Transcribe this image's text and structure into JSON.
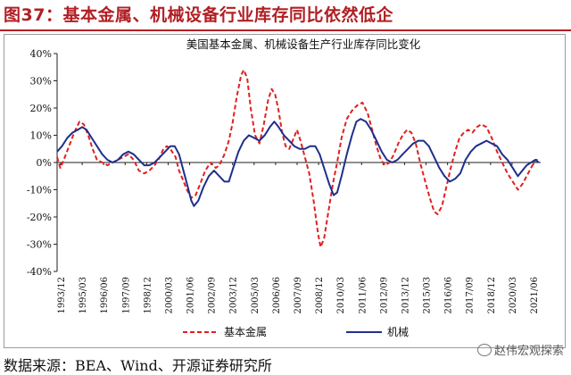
{
  "header": {
    "figure_title": "图37：基本金属、机械设备行业库存同比依然低企"
  },
  "source_note": "数据来源：BEA、Wind、开源证券研究所",
  "watermark": "赵伟宏观探索",
  "chart_data": {
    "type": "line",
    "title": "美国基本金属、机械设备生产行业库存同比变化",
    "xlabel": "",
    "ylabel": "",
    "ylim": [
      -40,
      40
    ],
    "yticks": [
      "40%",
      "30%",
      "20%",
      "10%",
      "0%",
      "-10%",
      "-20%",
      "-30%",
      "-40%"
    ],
    "xtick_labels": [
      "1993/12",
      "1995/03",
      "1996/06",
      "1997/09",
      "1998/12",
      "2000/03",
      "2001/06",
      "2002/09",
      "2003/12",
      "2005/03",
      "2006/06",
      "2007/09",
      "2008/12",
      "2010/03",
      "2011/06",
      "2012/09",
      "2013/12",
      "2015/03",
      "2016/06",
      "2017/09",
      "2018/12",
      "2020/03",
      "2021/06"
    ],
    "xlim": [
      1993.917,
      2021.6
    ],
    "grid": false,
    "legend_position": "bottom",
    "series": [
      {
        "name": "基本金属",
        "color": "#e02020",
        "dash": "dashed",
        "points": [
          [
            1993.917,
            2
          ],
          [
            1994.1,
            -2
          ],
          [
            1994.3,
            1
          ],
          [
            1994.6,
            6
          ],
          [
            1994.9,
            11
          ],
          [
            1995.2,
            15
          ],
          [
            1995.45,
            14
          ],
          [
            1995.7,
            10
          ],
          [
            1995.95,
            5
          ],
          [
            1996.2,
            1
          ],
          [
            1996.5,
            0
          ],
          [
            1996.8,
            -1
          ],
          [
            1997.1,
            0
          ],
          [
            1997.4,
            1
          ],
          [
            1997.7,
            2
          ],
          [
            1998.0,
            3
          ],
          [
            1998.3,
            1
          ],
          [
            1998.6,
            -3
          ],
          [
            1998.9,
            -4
          ],
          [
            1999.2,
            -3
          ],
          [
            1999.5,
            -1
          ],
          [
            1999.8,
            2
          ],
          [
            2000.0,
            5
          ],
          [
            2000.2,
            6
          ],
          [
            2000.4,
            5
          ],
          [
            2000.7,
            2
          ],
          [
            2000.9,
            -3
          ],
          [
            2001.1,
            -6
          ],
          [
            2001.35,
            -10
          ],
          [
            2001.6,
            -13
          ],
          [
            2001.85,
            -12
          ],
          [
            2002.1,
            -8
          ],
          [
            2002.4,
            -3
          ],
          [
            2002.7,
            0
          ],
          [
            2003.0,
            -2
          ],
          [
            2003.2,
            -1
          ],
          [
            2003.5,
            3
          ],
          [
            2003.75,
            8
          ],
          [
            2003.95,
            14
          ],
          [
            2004.2,
            24
          ],
          [
            2004.45,
            32
          ],
          [
            2004.6,
            34
          ],
          [
            2004.8,
            31
          ],
          [
            2005.0,
            20
          ],
          [
            2005.25,
            10
          ],
          [
            2005.5,
            7
          ],
          [
            2005.75,
            14
          ],
          [
            2006.0,
            23
          ],
          [
            2006.2,
            27
          ],
          [
            2006.4,
            25
          ],
          [
            2006.6,
            19
          ],
          [
            2006.8,
            11
          ],
          [
            2007.0,
            6
          ],
          [
            2007.2,
            5
          ],
          [
            2007.4,
            8
          ],
          [
            2007.65,
            12
          ],
          [
            2007.85,
            8
          ],
          [
            2008.1,
            2
          ],
          [
            2008.35,
            -4
          ],
          [
            2008.6,
            -14
          ],
          [
            2008.85,
            -26
          ],
          [
            2009.0,
            -31
          ],
          [
            2009.2,
            -28
          ],
          [
            2009.45,
            -18
          ],
          [
            2009.7,
            -8
          ],
          [
            2009.95,
            0
          ],
          [
            2010.2,
            9
          ],
          [
            2010.5,
            16
          ],
          [
            2010.8,
            19
          ],
          [
            2011.1,
            21
          ],
          [
            2011.4,
            22
          ],
          [
            2011.7,
            18
          ],
          [
            2011.95,
            12
          ],
          [
            2012.2,
            6
          ],
          [
            2012.45,
            1
          ],
          [
            2012.7,
            -1
          ],
          [
            2012.95,
            0
          ],
          [
            2013.2,
            3
          ],
          [
            2013.45,
            7
          ],
          [
            2013.7,
            10
          ],
          [
            2013.95,
            12
          ],
          [
            2014.2,
            11
          ],
          [
            2014.45,
            7
          ],
          [
            2014.7,
            0
          ],
          [
            2014.95,
            -6
          ],
          [
            2015.25,
            -13
          ],
          [
            2015.5,
            -18
          ],
          [
            2015.7,
            -19
          ],
          [
            2015.95,
            -16
          ],
          [
            2016.2,
            -9
          ],
          [
            2016.45,
            -2
          ],
          [
            2016.7,
            4
          ],
          [
            2016.95,
            9
          ],
          [
            2017.2,
            11
          ],
          [
            2017.45,
            12
          ],
          [
            2017.7,
            11
          ],
          [
            2017.95,
            13
          ],
          [
            2018.2,
            14
          ],
          [
            2018.5,
            13
          ],
          [
            2018.8,
            9
          ],
          [
            2019.1,
            4
          ],
          [
            2019.4,
            0
          ],
          [
            2019.7,
            -4
          ],
          [
            2020.0,
            -7
          ],
          [
            2020.3,
            -10
          ],
          [
            2020.55,
            -8
          ],
          [
            2020.8,
            -5
          ],
          [
            2021.05,
            -2
          ],
          [
            2021.3,
            1
          ],
          [
            2021.5,
            1
          ]
        ]
      },
      {
        "name": "机械",
        "color": "#1f2f8a",
        "dash": "solid",
        "points": [
          [
            1993.917,
            4
          ],
          [
            1994.2,
            6
          ],
          [
            1994.5,
            9
          ],
          [
            1994.8,
            11
          ],
          [
            1995.1,
            12
          ],
          [
            1995.35,
            13
          ],
          [
            1995.6,
            12
          ],
          [
            1995.9,
            9
          ],
          [
            1996.2,
            6
          ],
          [
            1996.5,
            3
          ],
          [
            1996.8,
            1
          ],
          [
            1997.1,
            0
          ],
          [
            1997.4,
            1
          ],
          [
            1997.7,
            3
          ],
          [
            1998.0,
            4
          ],
          [
            1998.3,
            3
          ],
          [
            1998.6,
            1
          ],
          [
            1998.9,
            -1
          ],
          [
            1999.2,
            -1
          ],
          [
            1999.5,
            0
          ],
          [
            1999.8,
            2
          ],
          [
            2000.1,
            4
          ],
          [
            2000.4,
            6
          ],
          [
            2000.65,
            6
          ],
          [
            2000.9,
            3
          ],
          [
            2001.15,
            -3
          ],
          [
            2001.4,
            -9
          ],
          [
            2001.6,
            -14
          ],
          [
            2001.75,
            -16
          ],
          [
            2002.0,
            -14
          ],
          [
            2002.3,
            -9
          ],
          [
            2002.6,
            -5
          ],
          [
            2002.9,
            -3
          ],
          [
            2003.2,
            -5
          ],
          [
            2003.5,
            -7
          ],
          [
            2003.75,
            -7
          ],
          [
            2004.0,
            -2
          ],
          [
            2004.3,
            4
          ],
          [
            2004.6,
            8
          ],
          [
            2004.9,
            10
          ],
          [
            2005.2,
            9
          ],
          [
            2005.5,
            8
          ],
          [
            2005.8,
            10
          ],
          [
            2006.1,
            13
          ],
          [
            2006.35,
            15
          ],
          [
            2006.6,
            13
          ],
          [
            2006.9,
            10
          ],
          [
            2007.2,
            8
          ],
          [
            2007.5,
            6
          ],
          [
            2007.8,
            5
          ],
          [
            2008.1,
            5
          ],
          [
            2008.4,
            6
          ],
          [
            2008.7,
            6
          ],
          [
            2008.95,
            3
          ],
          [
            2009.2,
            -2
          ],
          [
            2009.5,
            -8
          ],
          [
            2009.75,
            -12
          ],
          [
            2009.95,
            -11
          ],
          [
            2010.2,
            -5
          ],
          [
            2010.5,
            3
          ],
          [
            2010.8,
            10
          ],
          [
            2011.05,
            15
          ],
          [
            2011.3,
            16
          ],
          [
            2011.6,
            15
          ],
          [
            2011.9,
            12
          ],
          [
            2012.2,
            8
          ],
          [
            2012.5,
            4
          ],
          [
            2012.8,
            1
          ],
          [
            2013.1,
            0
          ],
          [
            2013.4,
            1
          ],
          [
            2013.7,
            3
          ],
          [
            2014.0,
            5
          ],
          [
            2014.3,
            7
          ],
          [
            2014.6,
            8
          ],
          [
            2014.9,
            8
          ],
          [
            2015.2,
            6
          ],
          [
            2015.5,
            2
          ],
          [
            2015.8,
            -2
          ],
          [
            2016.1,
            -5
          ],
          [
            2016.4,
            -7
          ],
          [
            2016.7,
            -6
          ],
          [
            2017.0,
            -4
          ],
          [
            2017.3,
            1
          ],
          [
            2017.6,
            4
          ],
          [
            2017.9,
            6
          ],
          [
            2018.2,
            7
          ],
          [
            2018.5,
            8
          ],
          [
            2018.8,
            7
          ],
          [
            2019.1,
            6
          ],
          [
            2019.4,
            3
          ],
          [
            2019.7,
            1
          ],
          [
            2020.0,
            -2
          ],
          [
            2020.3,
            -5
          ],
          [
            2020.55,
            -3
          ],
          [
            2020.8,
            -1
          ],
          [
            2021.05,
            0
          ],
          [
            2021.3,
            1
          ],
          [
            2021.5,
            0
          ]
        ]
      }
    ]
  }
}
